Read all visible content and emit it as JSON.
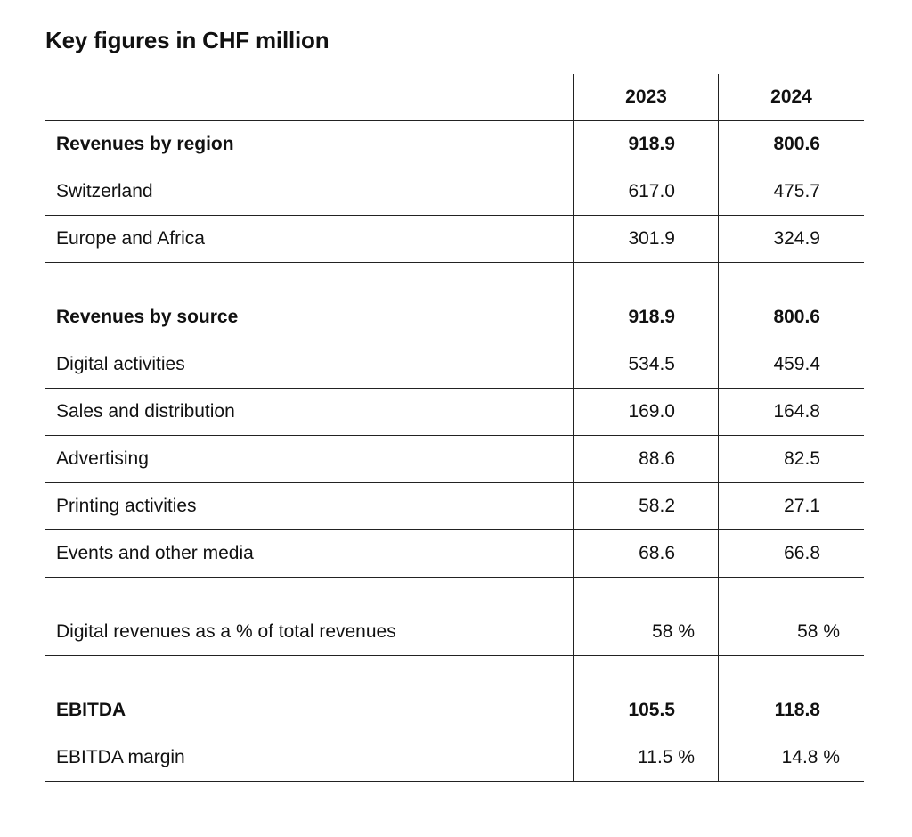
{
  "title": "Key figures in CHF million",
  "columns": [
    "2023",
    "2024"
  ],
  "rows": [
    {
      "label": "Revenues by region",
      "v2023": "918.9",
      "v2024": "800.6"
    },
    {
      "label": "Switzerland",
      "v2023": "617.0",
      "v2024": "475.7"
    },
    {
      "label": "Europe and Africa",
      "v2023": "301.9",
      "v2024": "324.9"
    },
    {
      "label": "Revenues by source",
      "v2023": "918.9",
      "v2024": "800.6"
    },
    {
      "label": "Digital activities",
      "v2023": "534.5",
      "v2024": "459.4"
    },
    {
      "label": "Sales and distribution",
      "v2023": "169.0",
      "v2024": "164.8"
    },
    {
      "label": "Advertising",
      "v2023": "88.6",
      "v2024": "82.5"
    },
    {
      "label": "Printing activities",
      "v2023": "58.2",
      "v2024": "27.1"
    },
    {
      "label": "Events and other media",
      "v2023": "68.6",
      "v2024": "66.8"
    },
    {
      "label": "Digital revenues as a % of total revenues",
      "v2023": "58 %",
      "v2024": "58 %"
    },
    {
      "label": "EBITDA",
      "v2023": "105.5",
      "v2024": "118.8"
    },
    {
      "label": "EBITDA margin",
      "v2023": "11.5 %",
      "v2024": "14.8 %"
    }
  ]
}
